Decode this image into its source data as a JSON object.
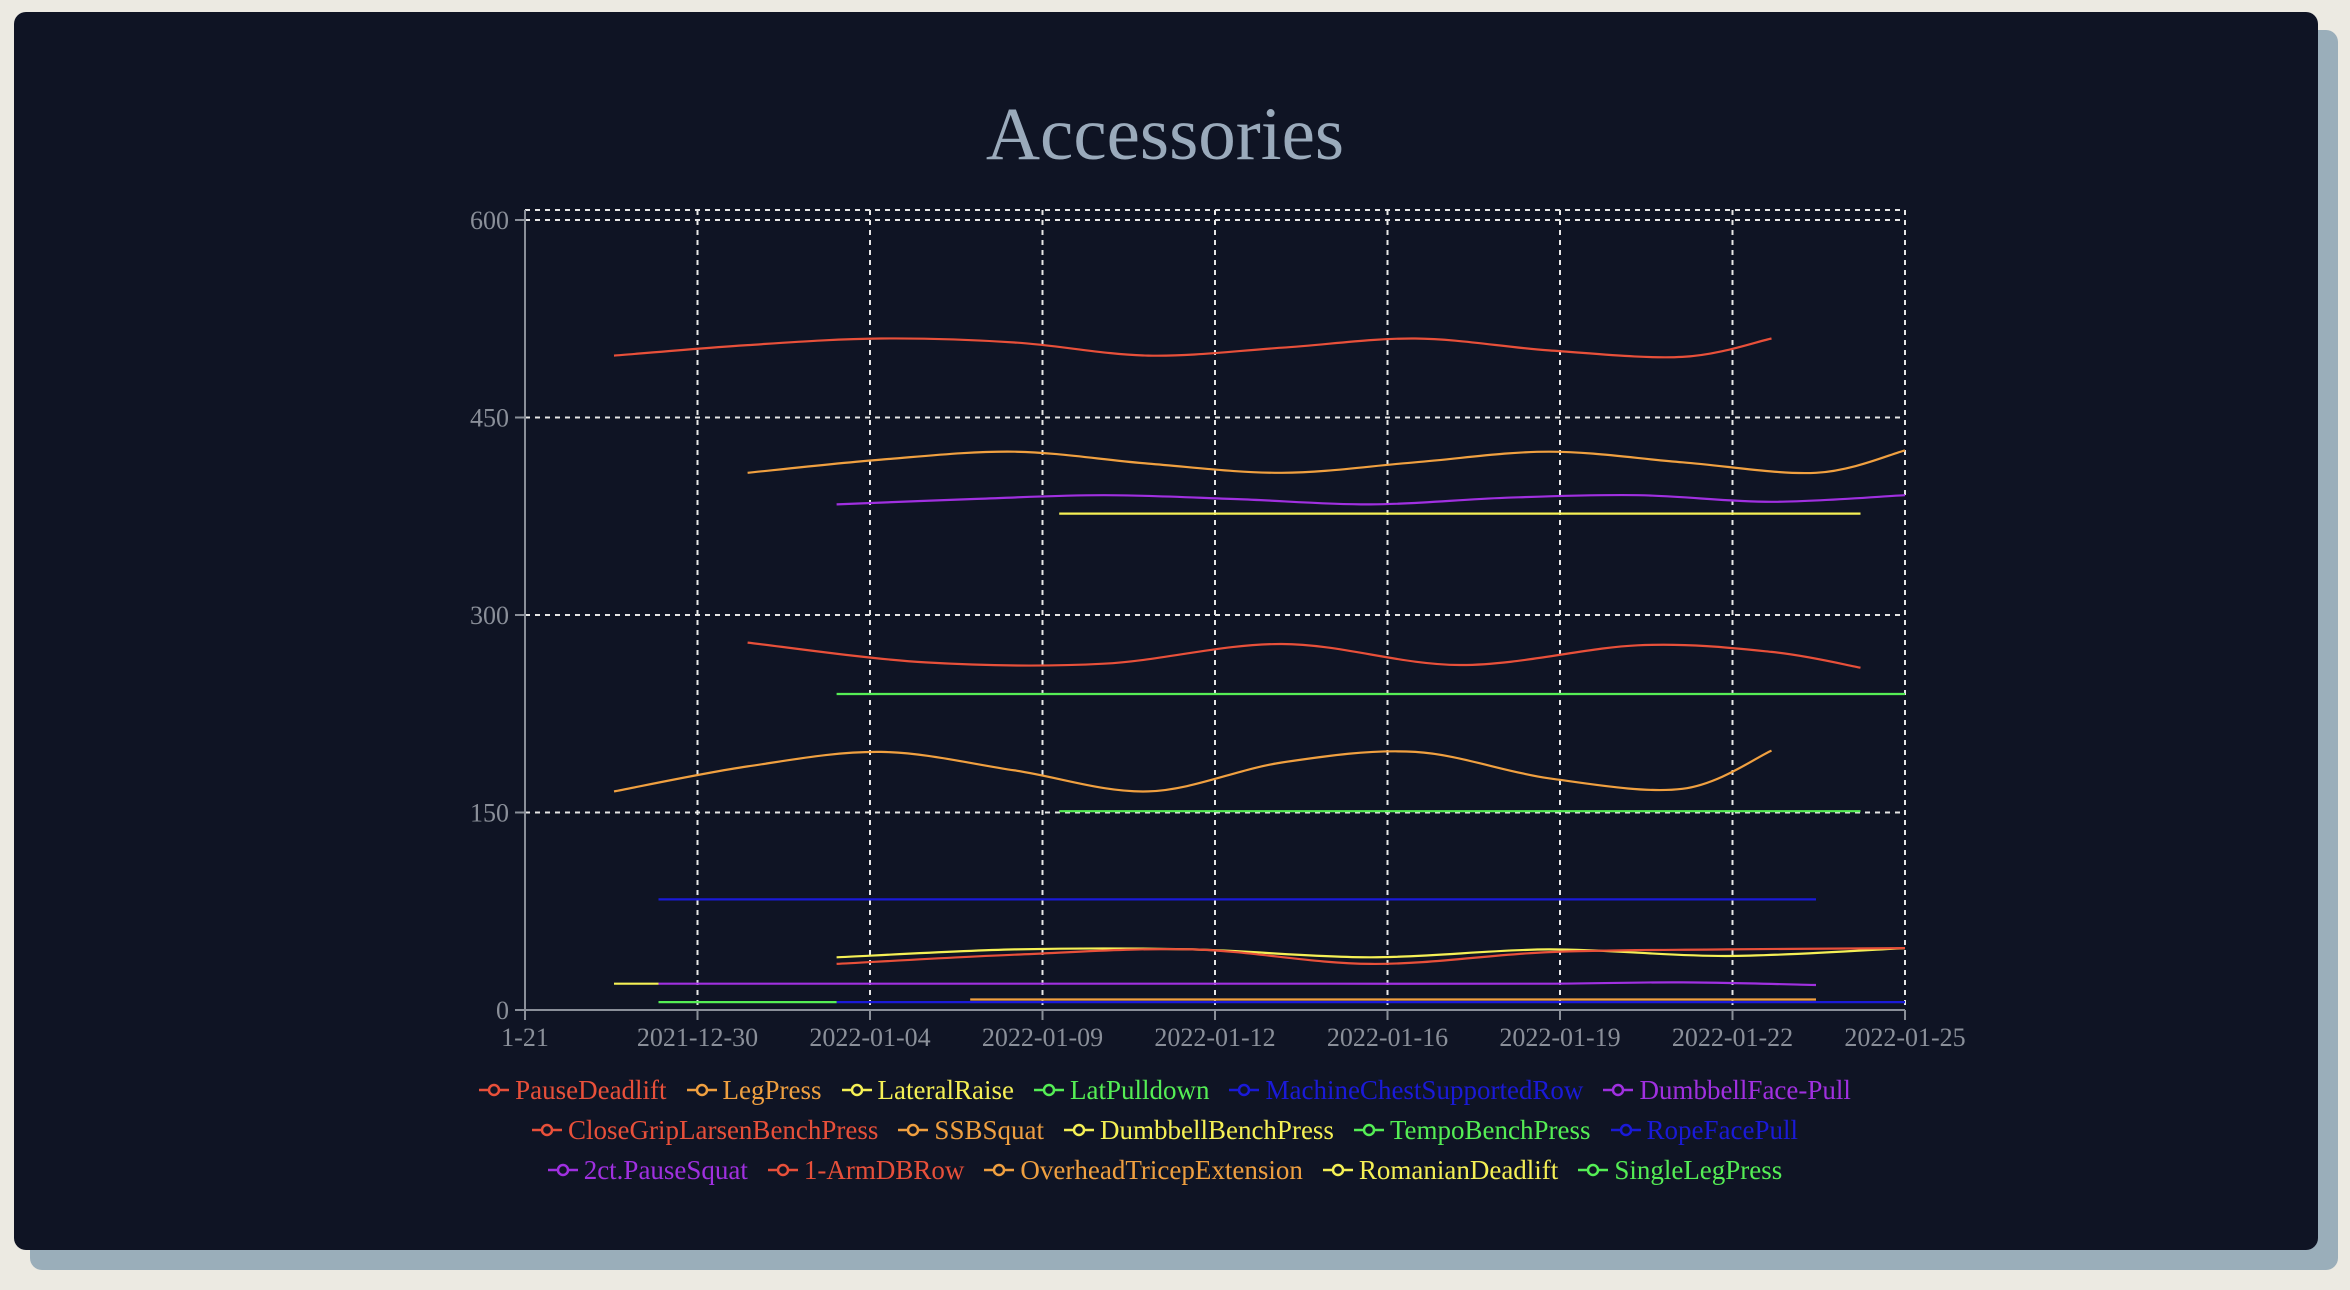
{
  "chart_data": {
    "type": "line",
    "title": "Accessories",
    "xlabel": "",
    "ylabel": "",
    "x_tick_labels": [
      "1-21",
      "2021-12-30",
      "2022-01-04",
      "2022-01-09",
      "2022-01-12",
      "2022-01-16",
      "2022-01-19",
      "2022-01-22",
      "2022-01-25"
    ],
    "ylim": [
      0,
      600
    ],
    "y_ticks": [
      0,
      150,
      300,
      450,
      600
    ],
    "grid": true,
    "legend_position": "bottom",
    "series": [
      {
        "name": "PauseDeadlift",
        "color": "#e8503a",
        "x": [
          "2021-12-27",
          "2021-12-30",
          "2022-01-02",
          "2022-01-05",
          "2022-01-08",
          "2022-01-11",
          "2022-01-14",
          "2022-01-17",
          "2022-01-20",
          "2022-01-22"
        ],
        "values": [
          497,
          505,
          510,
          507,
          497,
          503,
          510,
          501,
          496,
          510
        ]
      },
      {
        "name": "LegPress",
        "color": "#f0a040",
        "x": [
          "2021-12-30",
          "2022-01-02",
          "2022-01-05",
          "2022-01-08",
          "2022-01-11",
          "2022-01-14",
          "2022-01-17",
          "2022-01-20",
          "2022-01-23",
          "2022-01-25"
        ],
        "values": [
          408,
          418,
          424,
          415,
          408,
          416,
          424,
          416,
          408,
          425
        ]
      },
      {
        "name": "LateralRaise",
        "color": "#f5f055",
        "x": [
          "2022-01-06",
          "2022-01-24"
        ],
        "values": [
          377,
          377
        ]
      },
      {
        "name": "LatPulldown",
        "color": "#55ee55",
        "x": [
          "2022-01-01",
          "2022-01-25"
        ],
        "values": [
          240,
          240
        ]
      },
      {
        "name": "MachineChestSupportedRow",
        "color": "#1a1ad8",
        "x": [
          "2021-12-28",
          "2022-01-23"
        ],
        "values": [
          84,
          84
        ]
      },
      {
        "name": "DumbbellFace-Pull",
        "color": "#a030e0",
        "x": [
          "2022-01-01",
          "2022-01-04",
          "2022-01-07",
          "2022-01-10",
          "2022-01-13",
          "2022-01-16",
          "2022-01-19",
          "2022-01-22",
          "2022-01-25"
        ],
        "values": [
          384,
          388,
          391,
          388,
          384,
          389,
          391,
          386,
          391
        ]
      },
      {
        "name": "CloseGripLarsenBenchPress",
        "color": "#e8503a",
        "x": [
          "2021-12-30",
          "2022-01-03",
          "2022-01-07",
          "2022-01-11",
          "2022-01-15",
          "2022-01-19",
          "2022-01-22",
          "2022-01-24"
        ],
        "values": [
          279,
          264,
          263,
          278,
          262,
          277,
          272,
          260
        ]
      },
      {
        "name": "SSBSquat",
        "color": "#f0a040",
        "x": [
          "2021-12-27",
          "2021-12-30",
          "2022-01-02",
          "2022-01-05",
          "2022-01-08",
          "2022-01-11",
          "2022-01-14",
          "2022-01-17",
          "2022-01-20",
          "2022-01-22"
        ],
        "values": [
          166,
          185,
          196,
          182,
          166,
          188,
          196,
          176,
          168,
          197
        ]
      },
      {
        "name": "DumbbellBenchPress",
        "color": "#f5f055",
        "x": [
          "2022-01-01",
          "2022-01-05",
          "2022-01-09",
          "2022-01-13",
          "2022-01-17",
          "2022-01-21",
          "2022-01-25"
        ],
        "values": [
          40,
          46,
          46,
          40,
          46,
          41,
          47
        ]
      },
      {
        "name": "TempoBenchPress",
        "color": "#55ee55",
        "x": [
          "2022-01-06",
          "2022-01-24"
        ],
        "values": [
          151,
          151
        ]
      },
      {
        "name": "RopeFacePull",
        "color": "#1a1ad8",
        "x": [
          "2022-01-01",
          "2022-01-25"
        ],
        "values": [
          6,
          6
        ]
      },
      {
        "name": "2ct.PauseSquat",
        "color": "#a030e0",
        "x": [
          "2021-12-28",
          "2022-01-02",
          "2022-01-07",
          "2022-01-12",
          "2022-01-17",
          "2022-01-20",
          "2022-01-23"
        ],
        "values": [
          20,
          20,
          20,
          20,
          20,
          21,
          19
        ]
      },
      {
        "name": "1-ArmDBRow",
        "color": "#e8503a",
        "x": [
          "2022-01-01",
          "2022-01-05",
          "2022-01-09",
          "2022-01-13",
          "2022-01-17",
          "2022-01-21",
          "2022-01-25"
        ],
        "values": [
          35,
          42,
          46,
          35,
          44,
          46,
          47
        ]
      },
      {
        "name": "OverheadTricepExtension",
        "color": "#f0a040",
        "x": [
          "2022-01-04",
          "2022-01-23"
        ],
        "values": [
          8,
          8
        ]
      },
      {
        "name": "RomanianDeadlift",
        "color": "#f5f055",
        "x": [
          "2021-12-27",
          "2021-12-28"
        ],
        "values": [
          20,
          20
        ]
      },
      {
        "name": "SingleLegPress",
        "color": "#55ee55",
        "x": [
          "2021-12-28",
          "2022-01-01"
        ],
        "values": [
          6,
          6
        ]
      }
    ]
  }
}
